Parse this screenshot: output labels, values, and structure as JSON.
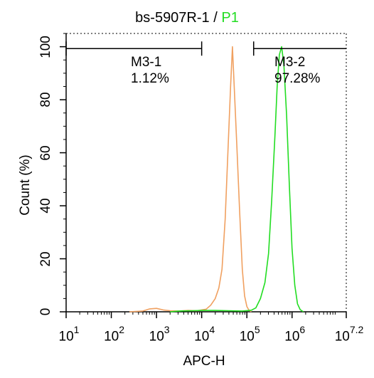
{
  "chart_data": {
    "type": "line",
    "title_parts": {
      "sample": "bs-5907R-1",
      "separator": "/",
      "gate": "P1"
    },
    "xlabel": "APC-H",
    "ylabel": "Count  (%)",
    "x_scale": "log10",
    "xlim": [
      1,
      7.2
    ],
    "ylim": [
      0,
      105
    ],
    "x_tick_labels": [
      {
        "base": "10",
        "exp": "1",
        "value": 1
      },
      {
        "base": "10",
        "exp": "2",
        "value": 2
      },
      {
        "base": "10",
        "exp": "3",
        "value": 3
      },
      {
        "base": "10",
        "exp": "4",
        "value": 4
      },
      {
        "base": "10",
        "exp": "5",
        "value": 5
      },
      {
        "base": "10",
        "exp": "6",
        "value": 6
      },
      {
        "base": "10",
        "exp": "7.2",
        "value": 7.2
      }
    ],
    "y_ticks": [
      0,
      20,
      40,
      60,
      80,
      100
    ],
    "gates": [
      {
        "name": "M3-1",
        "percent": "1.12%",
        "range": [
          1,
          4.0
        ]
      },
      {
        "name": "M3-2",
        "percent": "97.28%",
        "range": [
          5.15,
          7.2
        ]
      }
    ],
    "gate_bar_level": 99.3,
    "series": [
      {
        "color": "#f0a060",
        "points": [
          [
            2.4,
            0
          ],
          [
            2.7,
            0.3
          ],
          [
            2.85,
            1.1
          ],
          [
            3.0,
            1.3
          ],
          [
            3.15,
            0.7
          ],
          [
            3.3,
            0.4
          ],
          [
            3.5,
            0.3
          ],
          [
            3.7,
            0.5
          ],
          [
            3.9,
            0.4
          ],
          [
            4.1,
            1.0
          ],
          [
            4.2,
            2.5
          ],
          [
            4.3,
            5
          ],
          [
            4.38,
            9
          ],
          [
            4.45,
            16
          ],
          [
            4.52,
            35
          ],
          [
            4.58,
            60
          ],
          [
            4.64,
            85
          ],
          [
            4.68,
            100
          ],
          [
            4.72,
            85
          ],
          [
            4.78,
            62
          ],
          [
            4.84,
            38
          ],
          [
            4.9,
            16
          ],
          [
            4.95,
            6
          ],
          [
            5.0,
            2
          ],
          [
            5.05,
            0.5
          ],
          [
            5.1,
            0
          ]
        ]
      },
      {
        "color": "#22dd22",
        "points": [
          [
            3.3,
            0
          ],
          [
            3.5,
            0.3
          ],
          [
            3.8,
            0.4
          ],
          [
            4.0,
            0.5
          ],
          [
            4.3,
            0.5
          ],
          [
            4.6,
            0.4
          ],
          [
            4.9,
            0.3
          ],
          [
            5.1,
            0.6
          ],
          [
            5.2,
            1.5
          ],
          [
            5.3,
            5
          ],
          [
            5.4,
            11
          ],
          [
            5.48,
            22
          ],
          [
            5.55,
            42
          ],
          [
            5.62,
            66
          ],
          [
            5.67,
            85
          ],
          [
            5.72,
            97
          ],
          [
            5.77,
            100
          ],
          [
            5.82,
            93
          ],
          [
            5.88,
            74
          ],
          [
            5.94,
            48
          ],
          [
            6.0,
            24
          ],
          [
            6.06,
            10
          ],
          [
            6.12,
            3
          ],
          [
            6.18,
            0.8
          ],
          [
            6.25,
            0
          ]
        ]
      }
    ],
    "colors": {
      "axis": "#000000",
      "gate_label": "#22dd22"
    }
  }
}
